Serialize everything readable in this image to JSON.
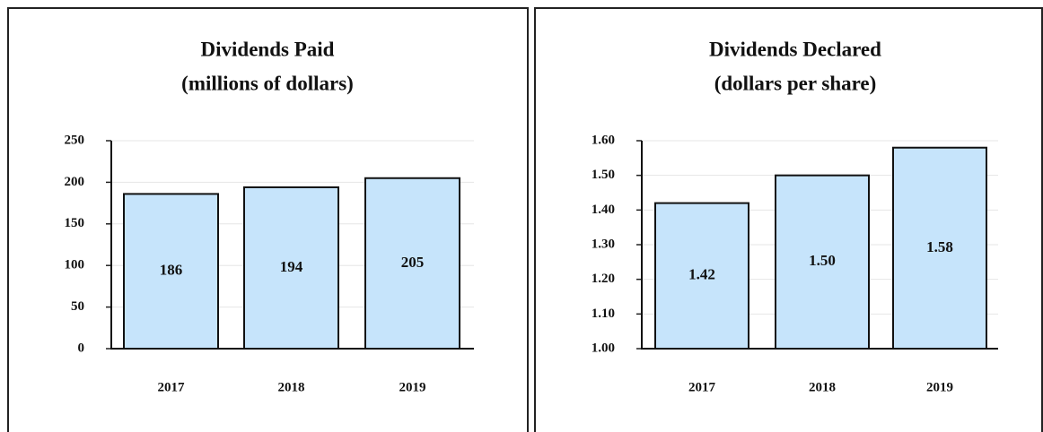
{
  "chart_data": [
    {
      "type": "bar",
      "title": "Dividends Paid",
      "subtitle": "(millions of dollars)",
      "categories": [
        "2017",
        "2018",
        "2019"
      ],
      "values": [
        186,
        194,
        205
      ],
      "color": "#c6e4fb",
      "ylim": [
        0,
        250
      ],
      "yticks": [
        0,
        50,
        100,
        150,
        200,
        250
      ],
      "grid": true
    },
    {
      "type": "bar",
      "title": "Dividends Declared",
      "subtitle": "(dollars per share)",
      "categories": [
        "2017",
        "2018",
        "2019"
      ],
      "values": [
        1.42,
        1.5,
        1.58
      ],
      "value_labels": [
        "1.42",
        "1.50",
        "1.58"
      ],
      "color": "#c6e4fb",
      "ylim": [
        1,
        1.6
      ],
      "yticks": [
        {
          "value": 1,
          "label": "1.00"
        },
        {
          "value": 1.1,
          "label": "1.10"
        },
        {
          "value": 1.2,
          "label": "1.20"
        },
        {
          "value": 1.3,
          "label": "1.30"
        },
        {
          "value": 1.4,
          "label": "1.40"
        },
        {
          "value": 1.5,
          "label": "1.50"
        },
        {
          "value": 1.6,
          "label": "1.60"
        }
      ],
      "grid": true
    }
  ]
}
